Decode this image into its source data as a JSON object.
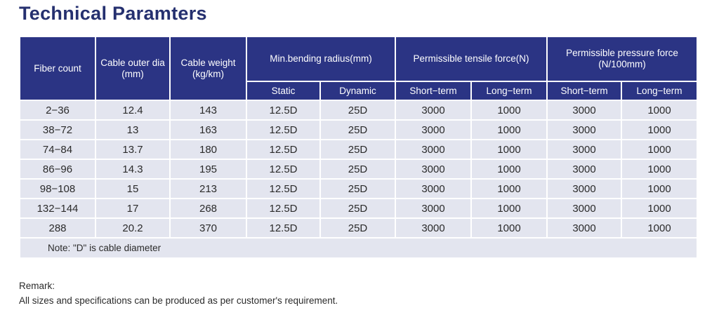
{
  "title": "Technical Paramters",
  "colors": {
    "header_bg": "#2b3484",
    "row_bg": "#e3e5ef",
    "title": "#25306f"
  },
  "headers": {
    "fiber_count": "Fiber count",
    "cable_outer_dia": "Cable outer dia (mm)",
    "cable_weight": "Cable weight (kg/km)",
    "bending_radius": "Min.bending radius(mm)",
    "tensile_force": "Permissible tensile force(N)",
    "pressure_force": "Permissible pressure force (N/100mm)",
    "sub": [
      "Static",
      "Dynamic",
      "Short−term",
      "Long−term",
      "Short−term",
      "Long−term"
    ]
  },
  "rows": [
    [
      "2−36",
      "12.4",
      "143",
      "12.5D",
      "25D",
      "3000",
      "1000",
      "3000",
      "1000"
    ],
    [
      "38−72",
      "13",
      "163",
      "12.5D",
      "25D",
      "3000",
      "1000",
      "3000",
      "1000"
    ],
    [
      "74−84",
      "13.7",
      "180",
      "12.5D",
      "25D",
      "3000",
      "1000",
      "3000",
      "1000"
    ],
    [
      "86−96",
      "14.3",
      "195",
      "12.5D",
      "25D",
      "3000",
      "1000",
      "3000",
      "1000"
    ],
    [
      "98−108",
      "15",
      "213",
      "12.5D",
      "25D",
      "3000",
      "1000",
      "3000",
      "1000"
    ],
    [
      "132−144",
      "17",
      "268",
      "12.5D",
      "25D",
      "3000",
      "1000",
      "3000",
      "1000"
    ],
    [
      "288",
      "20.2",
      "370",
      "12.5D",
      "25D",
      "3000",
      "1000",
      "3000",
      "1000"
    ]
  ],
  "note": "Note: \"D\" is cable diameter",
  "remark_label": "Remark:",
  "remark_text": "All sizes and specifications can be produced as per customer's requirement."
}
